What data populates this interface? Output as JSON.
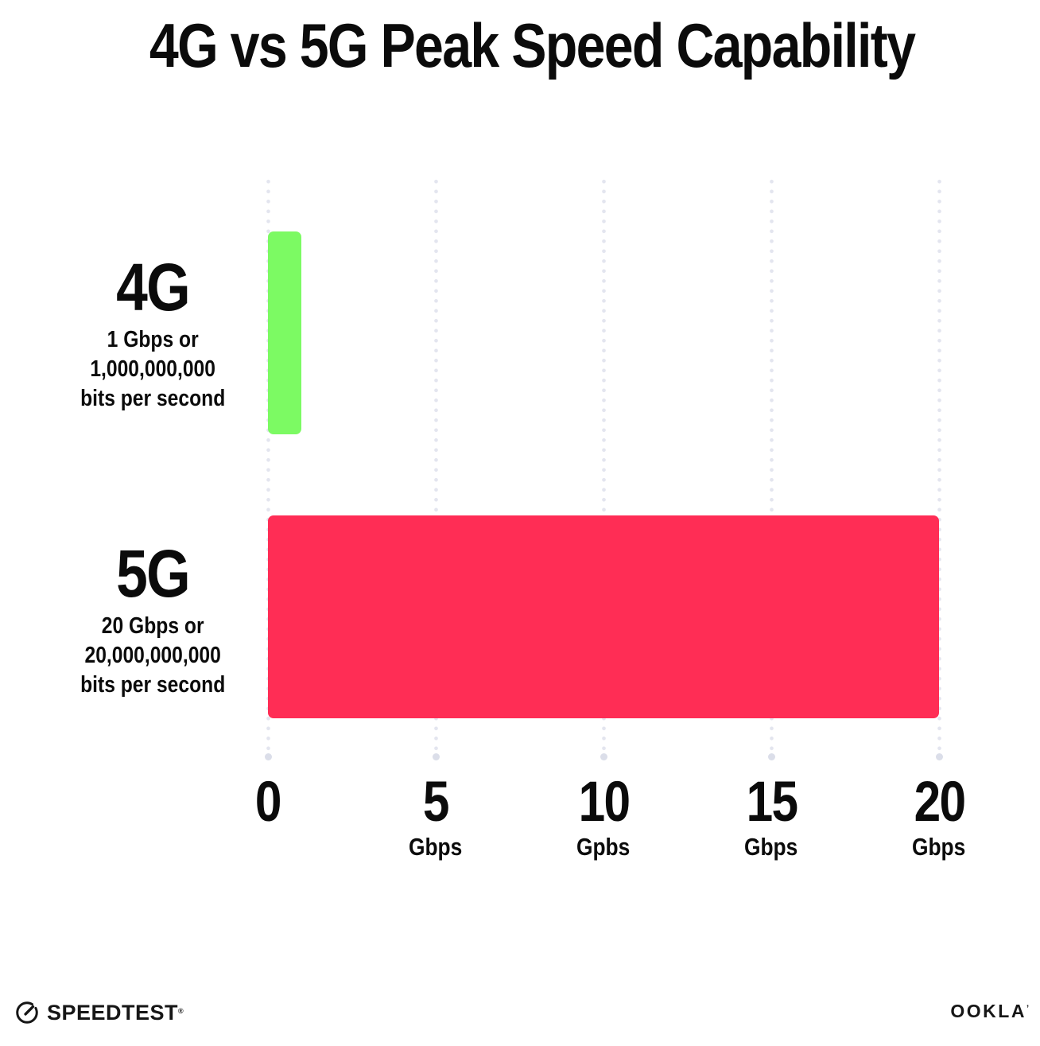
{
  "title": "4G vs 5G Peak Speed Capability",
  "chart_data": {
    "type": "bar",
    "orientation": "horizontal",
    "title": "4G vs 5G Peak Speed Capability",
    "categories": [
      "4G",
      "5G"
    ],
    "values": [
      1,
      20
    ],
    "bar_colors": [
      "#7CFA63",
      "#FF2D55"
    ],
    "series_labels": [
      {
        "name": "4G",
        "sublabel_lines": [
          "1 Gbps or",
          "1,000,000,000",
          "bits per second"
        ]
      },
      {
        "name": "5G",
        "sublabel_lines": [
          "20 Gbps or",
          "20,000,000,000",
          "bits per second"
        ]
      }
    ],
    "x_axis": {
      "max": 20,
      "ticks": [
        {
          "value": 0,
          "label": "0",
          "unit": ""
        },
        {
          "value": 5,
          "label": "5",
          "unit": "Gbps"
        },
        {
          "value": 10,
          "label": "10",
          "unit": "Gpbs"
        },
        {
          "value": 15,
          "label": "15",
          "unit": "Gbps"
        },
        {
          "value": 20,
          "label": "20",
          "unit": "Gbps"
        }
      ]
    },
    "grid": "dotted-vertical",
    "gridline_color": "#E3E5EF"
  },
  "footer": {
    "speedtest_label": "SPEEDTEST",
    "speedtest_mark": "®",
    "ookla_label": "OOKLA",
    "ookla_mark": "’"
  }
}
